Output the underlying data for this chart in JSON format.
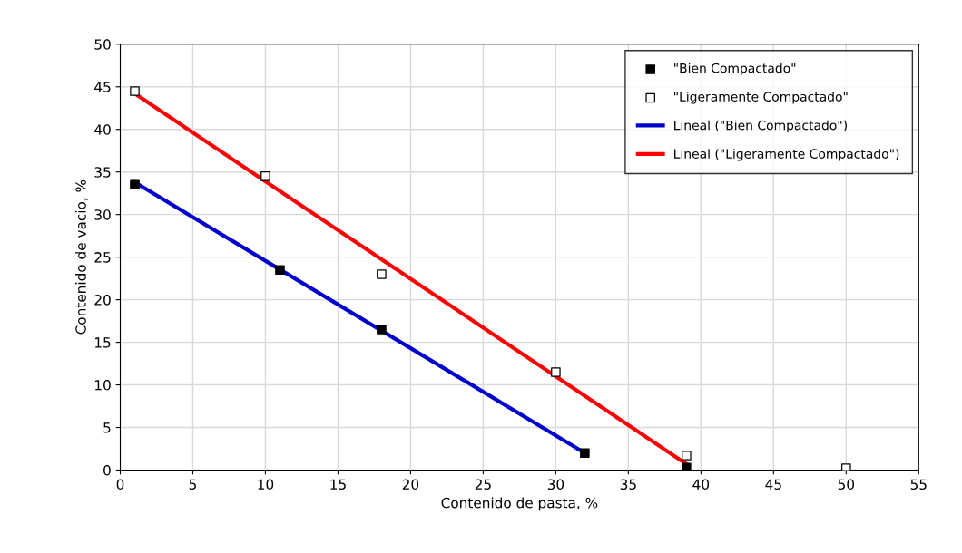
{
  "chart_data": {
    "type": "scatter",
    "xlabel": "Contenido de pasta, %",
    "ylabel": "Contenido de vacio, %",
    "xlim": [
      0,
      55
    ],
    "xticks": [
      0,
      5,
      10,
      15,
      20,
      25,
      30,
      35,
      40,
      45,
      50,
      55
    ],
    "ylim": [
      0,
      50
    ],
    "yticks": [
      0,
      5,
      10,
      15,
      20,
      25,
      30,
      35,
      40,
      45,
      50
    ],
    "grid": true,
    "legend": "top right",
    "series": [
      {
        "name": "\"Bien Compactado\"",
        "marker": "square",
        "color": "#000000",
        "x": [
          1,
          11,
          18,
          32,
          39
        ],
        "values": [
          33.5,
          23.5,
          16.5,
          2,
          0.3
        ]
      },
      {
        "name": "\"Ligeramente Compactado\"",
        "marker": "square",
        "color": "#ffffff",
        "x": [
          1,
          10,
          18,
          30,
          39,
          50
        ],
        "values": [
          44.5,
          34.5,
          23,
          11.5,
          1.7,
          0.2
        ]
      },
      {
        "name": "Lineal (\"Bien Compactado\")",
        "type": "line",
        "marker": "none",
        "color": "#0000cc",
        "x": [
          1,
          32
        ],
        "values": [
          33.8,
          2.0
        ]
      },
      {
        "name": "Lineal (\"Ligeramente Compactado\")",
        "type": "line",
        "marker": "none",
        "color": "#ff0000",
        "x": [
          1,
          39
        ],
        "values": [
          44.2,
          0.7
        ]
      }
    ]
  }
}
